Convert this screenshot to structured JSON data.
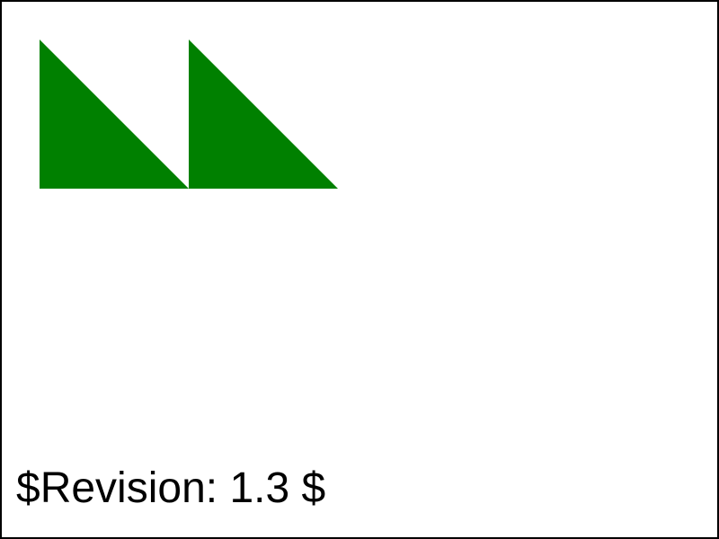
{
  "triangle_fill": "#008000",
  "revision_text": "$Revision: 1.3 $"
}
